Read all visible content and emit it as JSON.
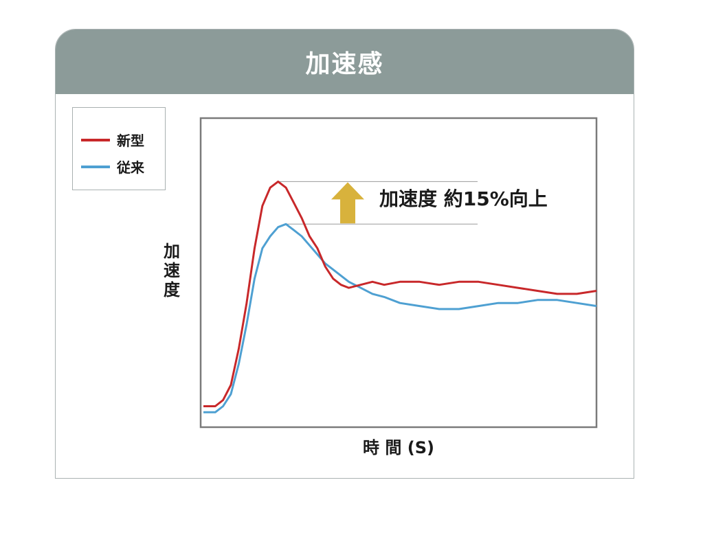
{
  "header": {
    "title": "加速感"
  },
  "legend": {
    "items": [
      {
        "label": "新型",
        "color": "#c8282a"
      },
      {
        "label": "従来",
        "color": "#4ea0d2"
      }
    ]
  },
  "axes": {
    "ylabel": [
      "加",
      "速",
      "度"
    ],
    "xlabel": "時 間 (S)"
  },
  "annotation": {
    "text": "加速度 約15%向上",
    "arrow_color": "#d8b23c"
  },
  "chart_data": {
    "type": "line",
    "xlabel": "時 間 (S)",
    "ylabel": "加速度",
    "xlim": [
      0,
      100
    ],
    "ylim": [
      0,
      100
    ],
    "grid": false,
    "legend_position": "top-left, outside plot",
    "series": [
      {
        "name": "新型",
        "color": "#c8282a",
        "x": [
          0,
          3,
          5,
          7,
          9,
          11,
          13,
          15,
          17,
          19,
          21,
          23,
          25,
          27,
          29,
          31,
          33,
          35,
          37,
          40,
          43,
          46,
          50,
          55,
          60,
          65,
          70,
          75,
          80,
          85,
          90,
          95,
          100
        ],
        "y": [
          6,
          6,
          8,
          13,
          25,
          40,
          58,
          72,
          78,
          80,
          78,
          73,
          68,
          62,
          58,
          52,
          48,
          46,
          45,
          46,
          47,
          46,
          47,
          47,
          46,
          47,
          47,
          46,
          45,
          44,
          43,
          43,
          44
        ]
      },
      {
        "name": "従来",
        "color": "#4ea0d2",
        "x": [
          0,
          3,
          5,
          7,
          9,
          11,
          13,
          15,
          17,
          19,
          21,
          23,
          25,
          27,
          29,
          31,
          33,
          35,
          37,
          40,
          43,
          46,
          50,
          55,
          60,
          65,
          70,
          75,
          80,
          85,
          90,
          95,
          100
        ],
        "y": [
          4,
          4,
          6,
          10,
          20,
          33,
          48,
          58,
          62,
          65,
          66,
          64,
          62,
          59,
          56,
          53,
          51,
          49,
          47,
          45,
          43,
          42,
          40,
          39,
          38,
          38,
          39,
          40,
          40,
          41,
          41,
          40,
          39
        ]
      }
    ]
  }
}
